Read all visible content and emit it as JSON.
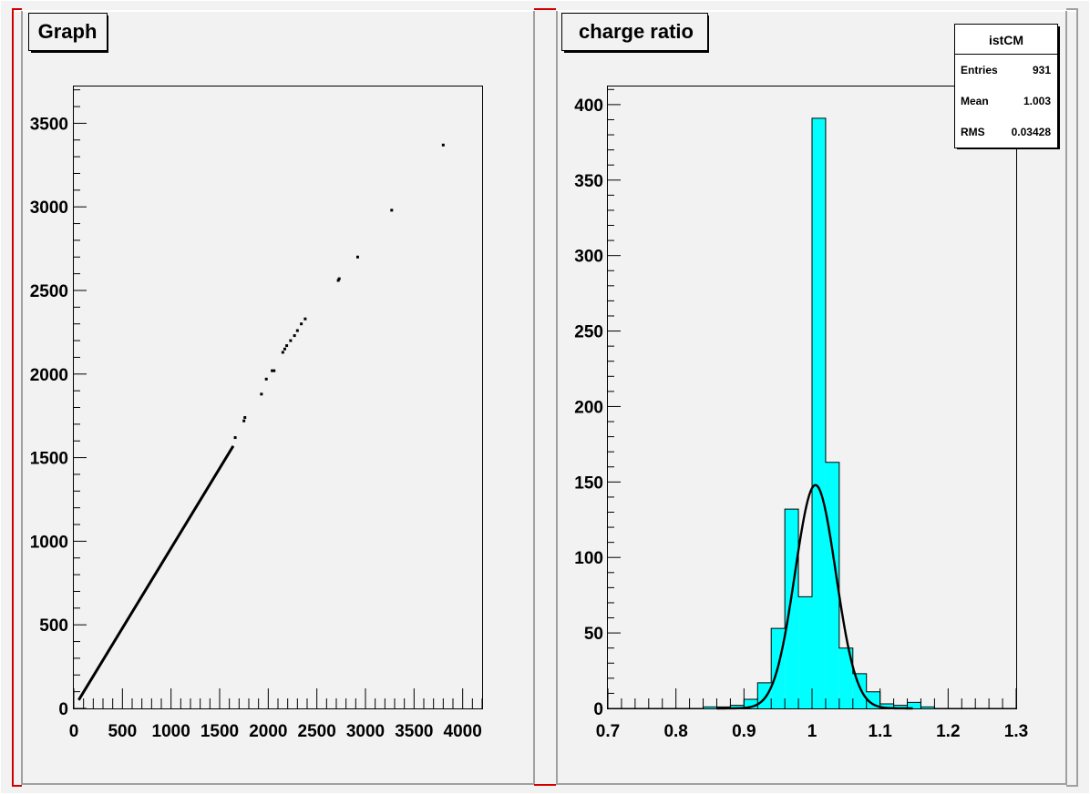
{
  "colors": {
    "canvas_bg": "#f2f2f2",
    "pad_frame_light": "#ffffff",
    "pad_frame_dark": "#a0a0a0",
    "pad_edge_marker": "#d00000",
    "marker": "#000000",
    "hist_fill": "#00ffff",
    "hist_line": "#000000",
    "fit_line": "#000000"
  },
  "chart_data": [
    {
      "type": "scatter",
      "title": "Graph",
      "xlabel": "",
      "ylabel": "",
      "xlim": [
        0,
        4200
      ],
      "ylim": [
        0,
        3720
      ],
      "xticks": [
        0,
        500,
        1000,
        1500,
        2000,
        2500,
        3000,
        3500,
        4000
      ],
      "yticks": [
        0,
        500,
        1000,
        1500,
        2000,
        2500,
        3000,
        3500
      ],
      "tick_labels_x": [
        "0",
        "500",
        "1000",
        "1500",
        "2000",
        "2500",
        "3000",
        "3500",
        "4000"
      ],
      "tick_labels_y": [
        "0",
        "500",
        "1000",
        "1500",
        "2000",
        "2500",
        "3000",
        "3500"
      ],
      "grid": false,
      "line_segment": {
        "x": [
          50,
          1640
        ],
        "y": [
          50,
          1570
        ]
      },
      "points": [
        [
          1660,
          1620
        ],
        [
          1750,
          1720
        ],
        [
          1760,
          1740
        ],
        [
          1930,
          1880
        ],
        [
          1980,
          1970
        ],
        [
          2040,
          2020
        ],
        [
          2060,
          2020
        ],
        [
          2150,
          2130
        ],
        [
          2170,
          2150
        ],
        [
          2190,
          2170
        ],
        [
          2230,
          2200
        ],
        [
          2270,
          2230
        ],
        [
          2300,
          2260
        ],
        [
          2340,
          2300
        ],
        [
          2380,
          2330
        ],
        [
          2720,
          2560
        ],
        [
          2730,
          2570
        ],
        [
          2920,
          2700
        ],
        [
          3270,
          2980
        ],
        [
          3800,
          3370
        ]
      ]
    },
    {
      "type": "bar",
      "title": "charge ratio",
      "xlabel": "",
      "ylabel": "",
      "xlim": [
        0.7,
        1.3
      ],
      "ylim": [
        0,
        412
      ],
      "xticks": [
        0.7,
        0.8,
        0.9,
        1.0,
        1.1,
        1.2,
        1.3
      ],
      "yticks": [
        0,
        50,
        100,
        150,
        200,
        250,
        300,
        350,
        400
      ],
      "tick_labels_x": [
        "0.7",
        "0.8",
        "0.9",
        "1",
        "1.1",
        "1.2",
        "1.3"
      ],
      "tick_labels_y": [
        "0",
        "50",
        "100",
        "150",
        "200",
        "250",
        "300",
        "350",
        "400"
      ],
      "grid": false,
      "bin_edges": [
        0.7,
        0.72,
        0.74,
        0.76,
        0.78,
        0.8,
        0.82,
        0.84,
        0.86,
        0.88,
        0.9,
        0.92,
        0.94,
        0.96,
        0.98,
        1.0,
        1.02,
        1.04,
        1.06,
        1.08,
        1.1,
        1.12,
        1.14,
        1.16,
        1.18,
        1.2,
        1.22,
        1.24,
        1.26,
        1.28,
        1.3
      ],
      "values": [
        0,
        0,
        0,
        0,
        0,
        0,
        0,
        1,
        1,
        2,
        6,
        17,
        53,
        132,
        74,
        391,
        163,
        40,
        23,
        11,
        3,
        2,
        4,
        1,
        0,
        0,
        0,
        0,
        0,
        0
      ],
      "fit": {
        "function": "gaus",
        "constant": 148,
        "mean": 1.005,
        "sigma": 0.03
      },
      "stats_box": {
        "title": "istCM",
        "rows": [
          {
            "label": "Entries",
            "value": "931"
          },
          {
            "label": "Mean",
            "value": "1.003"
          },
          {
            "label": "RMS",
            "value": "0.03428"
          }
        ]
      }
    }
  ]
}
